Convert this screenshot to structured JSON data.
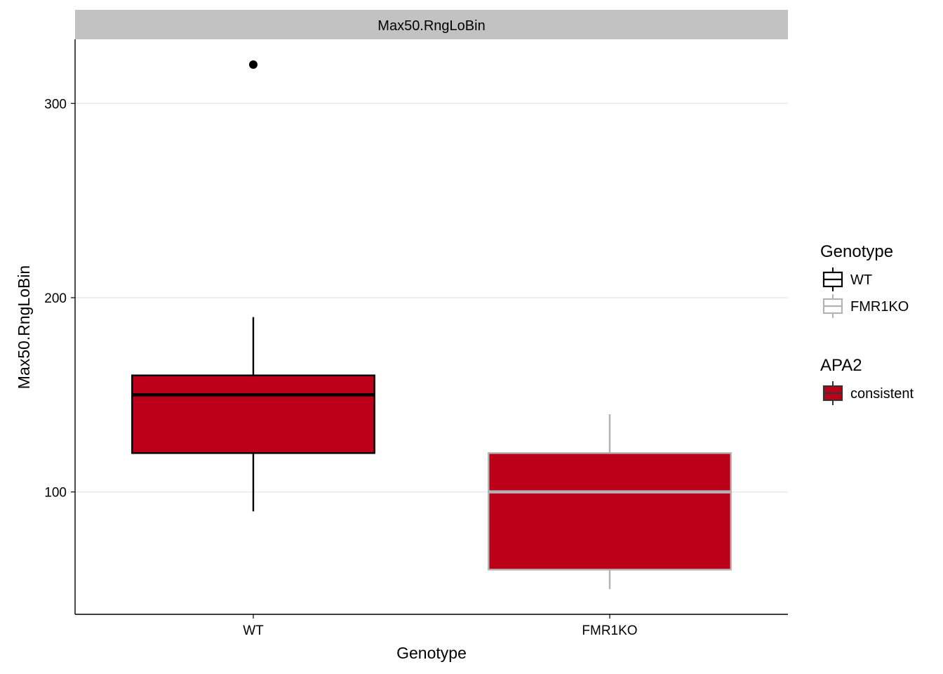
{
  "chart_data": {
    "type": "box",
    "facet_label": "Max50.RngLoBin",
    "xlabel": "Genotype",
    "ylabel": "Max50.RngLoBin",
    "categories": [
      "WT",
      "FMR1KO"
    ],
    "y_ticks": [
      100,
      200,
      300
    ],
    "ylim": [
      37,
      333
    ],
    "grid": true,
    "fill_color": "#BD0019",
    "outline_colors": {
      "WT": "#000000",
      "FMR1KO": "#B3B3B3"
    },
    "boxes": [
      {
        "category": "WT",
        "min": 90,
        "q1": 120,
        "median": 150,
        "q3": 160,
        "max": 190,
        "outliers": [
          320
        ]
      },
      {
        "category": "FMR1KO",
        "min": 50,
        "q1": 60,
        "median": 100,
        "q3": 120,
        "max": 140,
        "outliers": []
      }
    ],
    "legend": {
      "placement": "right",
      "groups": [
        {
          "title": "Genotype",
          "items": [
            {
              "label": "WT",
              "color": "#000000"
            },
            {
              "label": "FMR1KO",
              "color": "#B3B3B3"
            }
          ]
        },
        {
          "title": "APA2",
          "items": [
            {
              "label": "consistent",
              "color": "#BD0019"
            }
          ]
        }
      ]
    }
  }
}
